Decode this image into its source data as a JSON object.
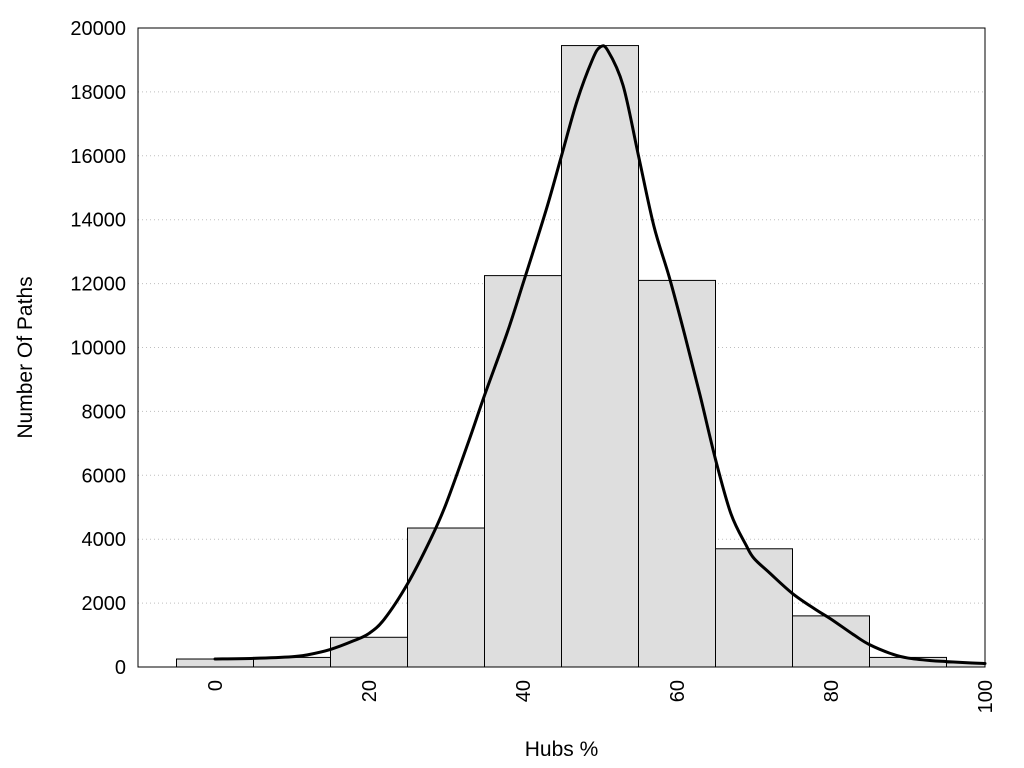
{
  "chart_data": {
    "type": "bar",
    "title": "",
    "xlabel": "Hubs %",
    "ylabel": "Number Of Paths",
    "xlim": [
      -10,
      100
    ],
    "ylim": [
      0,
      20000
    ],
    "x_ticks": [
      0,
      20,
      40,
      60,
      80,
      100
    ],
    "y_ticks": [
      0,
      2000,
      4000,
      6000,
      8000,
      10000,
      12000,
      14000,
      16000,
      18000,
      20000
    ],
    "grid": "horizontal dotted",
    "bin_width": 10,
    "bin_centers": [
      0,
      10,
      20,
      30,
      40,
      50,
      60,
      70,
      80,
      90,
      100
    ],
    "values": [
      250,
      300,
      930,
      4350,
      12250,
      19450,
      12100,
      3700,
      1600,
      300,
      130
    ],
    "series": [
      {
        "type": "line",
        "x": [
          0,
          5,
          10,
          12,
          15,
          18,
          20,
          22,
          25,
          28,
          30,
          33,
          35,
          38,
          40,
          43,
          45,
          47,
          49,
          50,
          51,
          53,
          55,
          57,
          59,
          61,
          63,
          65,
          67,
          69,
          70,
          72,
          75,
          78,
          80,
          83,
          85,
          88,
          90,
          93,
          95,
          98,
          100
        ],
        "y": [
          250,
          270,
          320,
          380,
          550,
          820,
          1050,
          1500,
          2600,
          4000,
          5100,
          7100,
          8500,
          10500,
          12000,
          14300,
          16000,
          17700,
          19000,
          19400,
          19300,
          18200,
          16000,
          13800,
          12200,
          10400,
          8500,
          6500,
          4800,
          3800,
          3400,
          2950,
          2300,
          1800,
          1500,
          1000,
          700,
          400,
          280,
          200,
          170,
          130,
          110
        ]
      }
    ],
    "colors": {
      "bar_fill": "#dedede",
      "bar_stroke": "#000000",
      "line": "#000000",
      "grid": "#bfbfbf",
      "frame": "#000000"
    }
  }
}
